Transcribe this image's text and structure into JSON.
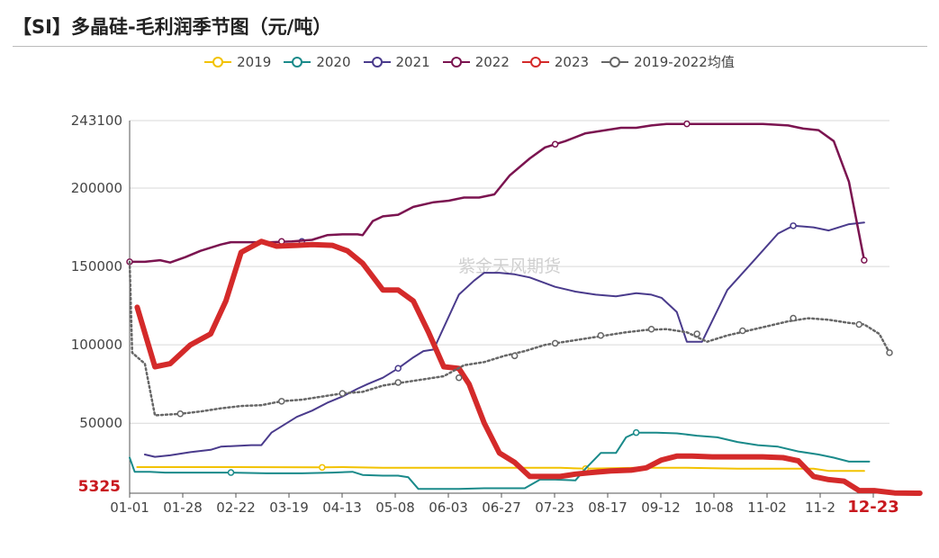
{
  "title": "【SI】多晶硅-毛利润季节图（元/吨）",
  "watermark": "紫金天风期货",
  "chart_data": {
    "type": "line",
    "title": "【SI】多晶硅-毛利润季节图（元/吨）",
    "xlabel": "",
    "ylabel": "",
    "ylim": [
      5325,
      243100
    ],
    "yticks": [
      243100,
      200000,
      150000,
      100000,
      50000
    ],
    "ymin_label": "5325",
    "xticks": [
      "01-01",
      "01-28",
      "02-22",
      "03-19",
      "04-13",
      "05-08",
      "06-03",
      "06-27",
      "07-23",
      "08-17",
      "09-12",
      "10-08",
      "11-02",
      "11-2",
      "12-23"
    ],
    "legend_position": "top",
    "grid": true,
    "series": [
      {
        "name": "2019",
        "color": "#f2c200",
        "width": 2,
        "dash": "",
        "points": [
          [
            0.15,
            22000
          ],
          [
            2.1,
            22000
          ],
          [
            3.8,
            21800
          ],
          [
            4.2,
            22000
          ],
          [
            5,
            21500
          ],
          [
            7,
            21500
          ],
          [
            8.5,
            21500
          ],
          [
            9,
            21000
          ],
          [
            10,
            21500
          ],
          [
            11,
            21500
          ],
          [
            12,
            21000
          ],
          [
            13.5,
            21000
          ],
          [
            13.8,
            19500
          ],
          [
            14.5,
            19500
          ]
        ],
        "markers": [
          [
            3.8,
            21800
          ],
          [
            9,
            21000
          ]
        ]
      },
      {
        "name": "2020",
        "color": "#1a8a8a",
        "width": 2,
        "dash": "",
        "points": [
          [
            0,
            28000
          ],
          [
            0.1,
            19000
          ],
          [
            0.4,
            19000
          ],
          [
            0.7,
            18500
          ],
          [
            1.6,
            18500
          ],
          [
            2,
            18500
          ],
          [
            2.7,
            18000
          ],
          [
            3.4,
            18000
          ],
          [
            4,
            18500
          ],
          [
            4.4,
            19000
          ],
          [
            4.6,
            17000
          ],
          [
            5,
            16500
          ],
          [
            5.3,
            16500
          ],
          [
            5.5,
            15500
          ],
          [
            5.7,
            8000
          ],
          [
            6.5,
            8000
          ],
          [
            7,
            8500
          ],
          [
            7.3,
            8500
          ],
          [
            7.8,
            8500
          ],
          [
            8.1,
            14000
          ],
          [
            8.4,
            14000
          ],
          [
            8.8,
            13500
          ],
          [
            9,
            21000
          ],
          [
            9.3,
            31000
          ],
          [
            9.6,
            31000
          ],
          [
            9.8,
            41000
          ],
          [
            10,
            44000
          ],
          [
            10.4,
            44000
          ],
          [
            10.8,
            43500
          ],
          [
            11.2,
            42000
          ],
          [
            11.6,
            41000
          ],
          [
            12,
            38000
          ],
          [
            12.4,
            36000
          ],
          [
            12.8,
            35000
          ],
          [
            13.2,
            32000
          ],
          [
            13.6,
            30000
          ],
          [
            13.9,
            28000
          ],
          [
            14.2,
            25500
          ],
          [
            14.6,
            25500
          ]
        ],
        "markers": [
          [
            2,
            18500
          ],
          [
            10,
            44000
          ]
        ]
      },
      {
        "name": "2021",
        "color": "#4a3b8c",
        "width": 2,
        "dash": "",
        "points": [
          [
            0.3,
            30000
          ],
          [
            0.5,
            28500
          ],
          [
            0.8,
            29500
          ],
          [
            1.2,
            31500
          ],
          [
            1.6,
            33000
          ],
          [
            1.8,
            35000
          ],
          [
            2.4,
            36000
          ],
          [
            2.6,
            36000
          ],
          [
            2.8,
            44000
          ],
          [
            3,
            48000
          ],
          [
            3.3,
            54000
          ],
          [
            3.6,
            58000
          ],
          [
            3.9,
            63000
          ],
          [
            4.2,
            67000
          ],
          [
            4.5,
            72000
          ],
          [
            4.7,
            75000
          ],
          [
            5,
            79000
          ],
          [
            5.3,
            85000
          ],
          [
            5.6,
            92000
          ],
          [
            5.8,
            96000
          ],
          [
            6,
            97000
          ],
          [
            6.5,
            132000
          ],
          [
            6.8,
            141000
          ],
          [
            7,
            146000
          ],
          [
            7.3,
            146000
          ],
          [
            7.6,
            145000
          ],
          [
            7.9,
            143000
          ],
          [
            8.4,
            137000
          ],
          [
            8.8,
            134000
          ],
          [
            9.2,
            132000
          ],
          [
            9.6,
            131000
          ],
          [
            10,
            133000
          ],
          [
            10.3,
            132000
          ],
          [
            10.5,
            130000
          ],
          [
            10.8,
            121000
          ],
          [
            11,
            102000
          ],
          [
            11.3,
            102000
          ],
          [
            11.8,
            135000
          ],
          [
            12.3,
            153000
          ],
          [
            12.8,
            171000
          ],
          [
            13.1,
            176000
          ],
          [
            13.5,
            175000
          ],
          [
            13.8,
            173000
          ],
          [
            14.2,
            177000
          ],
          [
            14.5,
            178000
          ]
        ],
        "markers": [
          [
            3.4,
            166000
          ],
          [
            5.3,
            85000
          ],
          [
            13.1,
            176000
          ]
        ]
      },
      {
        "name": "2022",
        "color": "#7b1450",
        "width": 2.5,
        "dash": "",
        "points": [
          [
            0,
            153000
          ],
          [
            0.3,
            153000
          ],
          [
            0.6,
            154000
          ],
          [
            0.8,
            152500
          ],
          [
            1.1,
            156000
          ],
          [
            1.4,
            160000
          ],
          [
            1.8,
            164000
          ],
          [
            2,
            165500
          ],
          [
            2.3,
            165500
          ],
          [
            2.8,
            165500
          ],
          [
            3.2,
            166000
          ],
          [
            3.6,
            167000
          ],
          [
            3.9,
            170000
          ],
          [
            4.2,
            170500
          ],
          [
            4.5,
            170500
          ],
          [
            4.6,
            170000
          ],
          [
            4.8,
            179000
          ],
          [
            5,
            182000
          ],
          [
            5.3,
            183000
          ],
          [
            5.6,
            188000
          ],
          [
            6,
            191000
          ],
          [
            6.3,
            192000
          ],
          [
            6.6,
            194000
          ],
          [
            6.9,
            194000
          ],
          [
            7.2,
            196000
          ],
          [
            7.5,
            208000
          ],
          [
            7.9,
            219000
          ],
          [
            8.2,
            226000
          ],
          [
            8.6,
            230000
          ],
          [
            9,
            235000
          ],
          [
            9.4,
            237000
          ],
          [
            9.7,
            238500
          ],
          [
            10,
            238500
          ],
          [
            10.3,
            240000
          ],
          [
            10.6,
            241000
          ],
          [
            11,
            241000
          ],
          [
            11.5,
            241000
          ],
          [
            12,
            241000
          ],
          [
            12.5,
            241000
          ],
          [
            13,
            240000
          ],
          [
            13.3,
            238000
          ],
          [
            13.6,
            237000
          ],
          [
            13.9,
            230000
          ],
          [
            14.2,
            204000
          ],
          [
            14.5,
            154000
          ]
        ],
        "markers": [
          [
            0,
            153000
          ],
          [
            3,
            166000
          ],
          [
            8.4,
            228000
          ],
          [
            11,
            241000
          ],
          [
            14.5,
            154000
          ]
        ]
      },
      {
        "name": "2023",
        "color": "#d42a2a",
        "width": 6,
        "dash": "",
        "points": [
          [
            0.15,
            124000
          ],
          [
            0.5,
            86000
          ],
          [
            0.8,
            88000
          ],
          [
            1.2,
            100000
          ],
          [
            1.6,
            107000
          ],
          [
            1.9,
            128000
          ],
          [
            2.2,
            159000
          ],
          [
            2.6,
            166000
          ],
          [
            2.9,
            163000
          ],
          [
            3.3,
            163500
          ],
          [
            3.6,
            164000
          ],
          [
            4,
            163500
          ],
          [
            4.3,
            160000
          ],
          [
            4.6,
            152000
          ],
          [
            5,
            135000
          ],
          [
            5.3,
            135000
          ],
          [
            5.6,
            128000
          ],
          [
            5.9,
            108000
          ],
          [
            6.2,
            86000
          ],
          [
            6.5,
            85000
          ],
          [
            6.7,
            75000
          ],
          [
            7,
            50000
          ],
          [
            7.3,
            31000
          ],
          [
            7.6,
            25000
          ],
          [
            7.9,
            16000
          ],
          [
            8.2,
            16000
          ],
          [
            8.5,
            16000
          ],
          [
            8.8,
            17500
          ],
          [
            9.1,
            18500
          ],
          [
            9.5,
            19500
          ],
          [
            9.9,
            20000
          ],
          [
            10.2,
            21500
          ],
          [
            10.5,
            26500
          ],
          [
            10.8,
            29000
          ],
          [
            11.1,
            29000
          ],
          [
            11.5,
            28500
          ],
          [
            12,
            28500
          ],
          [
            12.5,
            28500
          ],
          [
            12.9,
            28000
          ],
          [
            13.2,
            26000
          ],
          [
            13.5,
            16000
          ],
          [
            13.8,
            14000
          ],
          [
            14.1,
            13000
          ],
          [
            14.4,
            7000
          ],
          [
            14.7,
            7000
          ],
          [
            15.1,
            5500
          ],
          [
            15.6,
            5325
          ]
        ],
        "markers": []
      },
      {
        "name": "2019-2022均值",
        "color": "#666666",
        "width": 2.5,
        "dash": "2,3",
        "points": [
          [
            0,
            153000
          ],
          [
            0.05,
            95000
          ],
          [
            0.3,
            88000
          ],
          [
            0.5,
            55000
          ],
          [
            1,
            56000
          ],
          [
            1.4,
            57500
          ],
          [
            1.8,
            59500
          ],
          [
            2.2,
            61000
          ],
          [
            2.6,
            61500
          ],
          [
            3,
            64000
          ],
          [
            3.4,
            65000
          ],
          [
            3.8,
            67000
          ],
          [
            4.2,
            69000
          ],
          [
            4.6,
            70000
          ],
          [
            5,
            74000
          ],
          [
            5.4,
            76000
          ],
          [
            5.8,
            78000
          ],
          [
            6.2,
            80000
          ],
          [
            6.6,
            87000
          ],
          [
            7,
            89000
          ],
          [
            7.4,
            93000
          ],
          [
            7.8,
            96000
          ],
          [
            8.2,
            100000
          ],
          [
            8.6,
            102000
          ],
          [
            9,
            104000
          ],
          [
            9.4,
            106000
          ],
          [
            9.8,
            108000
          ],
          [
            10.2,
            109500
          ],
          [
            10.6,
            110000
          ],
          [
            11,
            108000
          ],
          [
            11.4,
            102000
          ],
          [
            11.8,
            106000
          ],
          [
            12.2,
            109000
          ],
          [
            12.6,
            112000
          ],
          [
            13,
            115000
          ],
          [
            13.4,
            117000
          ],
          [
            13.8,
            116000
          ],
          [
            14.2,
            114000
          ],
          [
            14.5,
            113000
          ],
          [
            14.8,
            107000
          ],
          [
            15,
            95000
          ]
        ],
        "markers": [
          [
            1,
            56000
          ],
          [
            3,
            64000
          ],
          [
            4.2,
            69000
          ],
          [
            5.3,
            76000
          ],
          [
            6.5,
            79000
          ],
          [
            7.6,
            93000
          ],
          [
            8.4,
            101000
          ],
          [
            9.3,
            106000
          ],
          [
            10.3,
            110000
          ],
          [
            11.2,
            107000
          ],
          [
            12.1,
            109000
          ],
          [
            13.1,
            117000
          ],
          [
            14.4,
            113000
          ],
          [
            15,
            95000
          ]
        ]
      }
    ]
  }
}
